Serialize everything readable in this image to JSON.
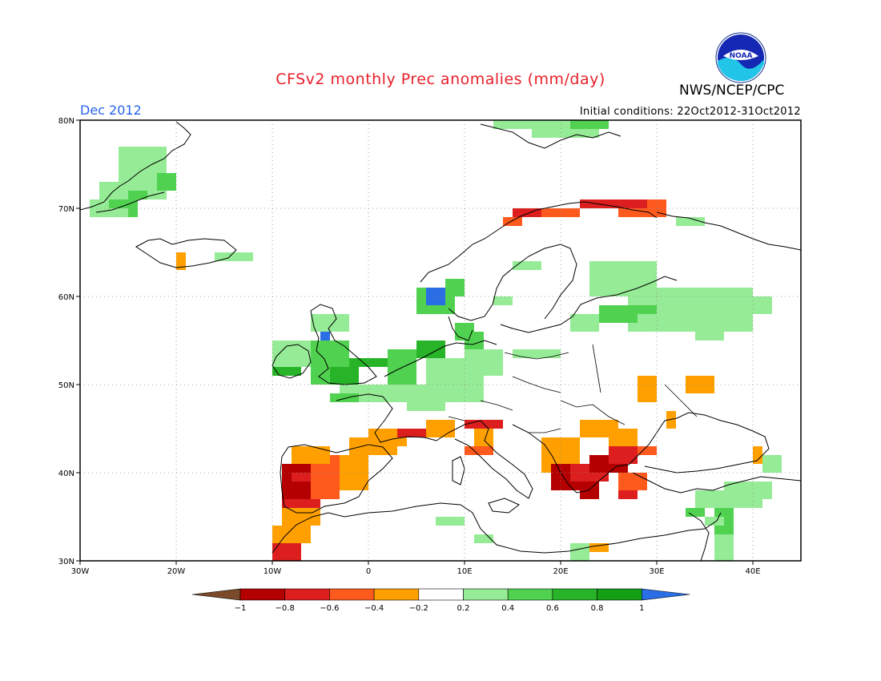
{
  "title": "CFSv2 monthly Prec anomalies (mm/day)",
  "period": "Dec 2012",
  "initial_conditions": "Initial conditions: 22Oct2012-31Oct2012",
  "agency": "NWS/NCEP/CPC",
  "logo": "NOAA",
  "map": {
    "projection": "lat-lon",
    "lon_range": [
      -30,
      45
    ],
    "lat_range": [
      30,
      80
    ],
    "lat_ticks": [
      "30N",
      "40N",
      "50N",
      "60N",
      "70N",
      "80N"
    ],
    "lon_ticks": [
      "30W",
      "20W",
      "10W",
      "0",
      "10E",
      "20E",
      "30E",
      "40E"
    ],
    "grid": "dotted",
    "colorbar": {
      "levels": [
        "-1",
        "-0.8",
        "-0.6",
        "-0.4",
        "-0.2",
        "0.2",
        "0.4",
        "0.6",
        "0.8",
        "1"
      ],
      "colors": [
        "#7a4a2a",
        "#b40000",
        "#dc1e1e",
        "#ff5a1e",
        "#ffa000",
        "#ffffff",
        "#96eb96",
        "#50d250",
        "#28b428",
        "#14a014",
        "#2a6ee6"
      ]
    }
  }
}
